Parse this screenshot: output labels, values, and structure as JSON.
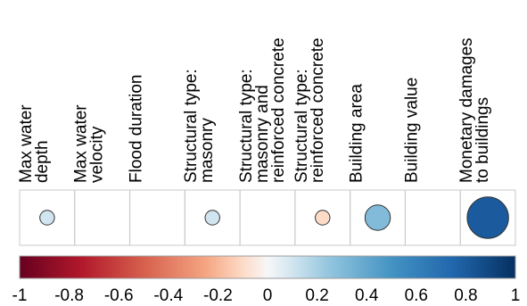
{
  "chart_data": {
    "type": "heatmap",
    "variables": [
      {
        "label_lines": [
          "Max water",
          "depth"
        ],
        "value": 0.1
      },
      {
        "label_lines": [
          "Max water",
          "velocity"
        ],
        "value": null
      },
      {
        "label_lines": [
          "Flood duration"
        ],
        "value": null
      },
      {
        "label_lines": [
          "Structural type:",
          "masonry"
        ],
        "value": 0.1
      },
      {
        "label_lines": [
          "Structural type:",
          "masonry and",
          "reinforced concrete"
        ],
        "value": null
      },
      {
        "label_lines": [
          "Structural type:",
          "reinforced concrete"
        ],
        "value": -0.1
      },
      {
        "label_lines": [
          "Building area"
        ],
        "value": 0.3
      },
      {
        "label_lines": [
          "Building value"
        ],
        "value": null
      },
      {
        "label_lines": [
          "Monetary damages",
          "to buildings"
        ],
        "value": 0.8
      }
    ],
    "colorbar": {
      "range": [
        -1,
        1
      ],
      "ticks": [
        "-1",
        "-0.8",
        "-0.6",
        "-0.4",
        "-0.2",
        "0",
        "0.2",
        "0.4",
        "0.6",
        "0.8",
        "1"
      ],
      "colormap": "RdBu"
    },
    "colors": {
      "negative_end": "#67001f",
      "neutral": "#f7f7f7",
      "positive_end": "#053061",
      "grid": "#c8c8c8",
      "outline": "#333333"
    }
  }
}
